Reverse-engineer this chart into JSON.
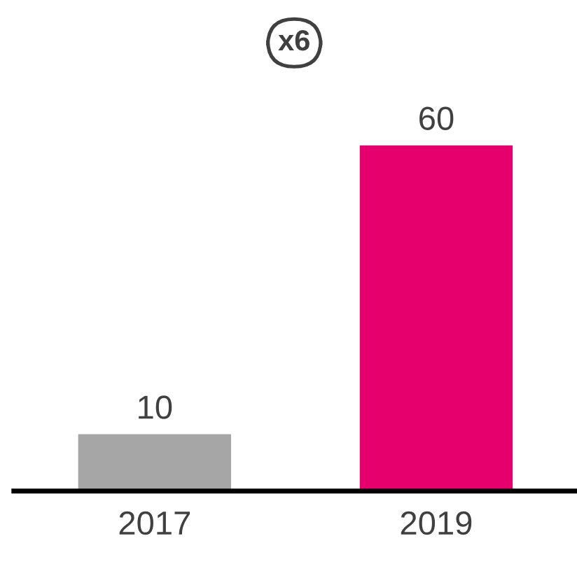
{
  "chart_data": {
    "type": "bar",
    "categories": [
      "2017",
      "2019"
    ],
    "values": [
      10,
      60
    ],
    "colors": [
      "#a6a6a6",
      "#e6006e"
    ],
    "data_labels": true,
    "annotations": [
      "x6"
    ],
    "grid": false,
    "legend": false
  }
}
